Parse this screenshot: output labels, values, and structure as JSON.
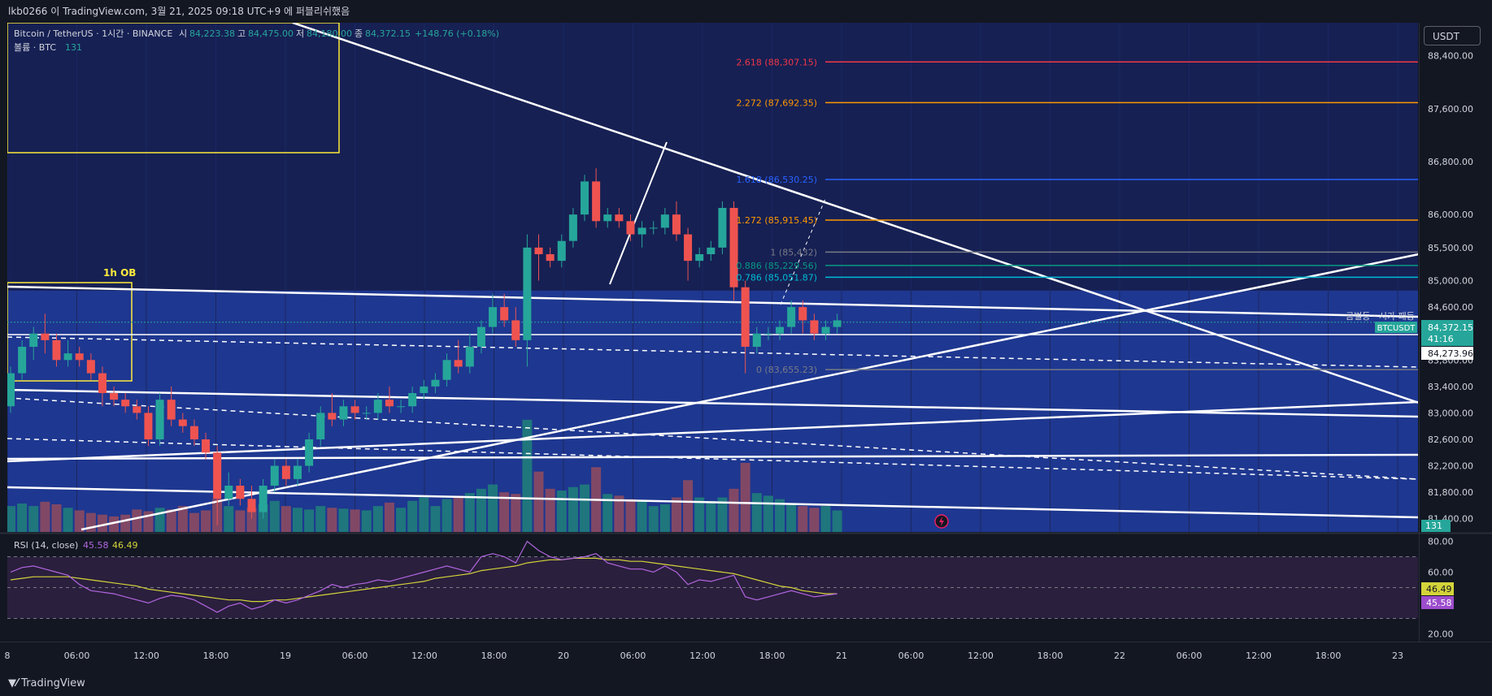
{
  "header": {
    "publish_note": "lkb0266 이 TradingView.com, 3월 21, 2025 09:18 UTC+9 에 퍼블리쉬했음"
  },
  "legend": {
    "symbol": "Bitcoin / TetherUS · 1시간 · BINANCE",
    "open_label": "시",
    "open_value": "84,223.38",
    "high_label": "고",
    "high_value": "84,475.00",
    "low_label": "저",
    "low_value": "84,180.00",
    "close_label": "종",
    "close_value": "84,372.15",
    "change": "+148.76 (+0.18%)",
    "volume_label": "볼륨 · BTC",
    "volume_value": "131"
  },
  "currency_button": "USDT",
  "annotations": {
    "ob_label": "1h OB",
    "fib_labels": [
      {
        "ratio": "2.618",
        "value": "88,307.15",
        "color": "#f23645"
      },
      {
        "ratio": "2.272",
        "value": "87,692.35",
        "color": "#ff9800"
      },
      {
        "ratio": "1.618",
        "value": "86,530.25",
        "color": "#2962ff"
      },
      {
        "ratio": "1.272",
        "value": "85,915.45",
        "color": "#ff9800"
      },
      {
        "ratio": "1",
        "value": "85,432",
        "color": "#787b86"
      },
      {
        "ratio": "0.886",
        "value": "85,229.56",
        "color": "#089981"
      },
      {
        "ratio": "0.786",
        "value": "85,051.87",
        "color": "#00bcd4"
      },
      {
        "ratio": "0",
        "value": "83,655.23",
        "color": "#787b86"
      }
    ],
    "bottom_right_label": "금벌등 · 시가 패등"
  },
  "price_scale": {
    "ticks": [
      "88,400.00",
      "87,600.00",
      "86,800.00",
      "86,000.00",
      "85,500.00",
      "85,000.00",
      "84,600.00",
      "83,800.00",
      "83,400.00",
      "83,000.00",
      "82,600.00",
      "82,200.00",
      "81,800.00",
      "81,400.00"
    ],
    "current_price": "84,372.15",
    "symbol_tag": "BTCUSDT",
    "countdown": "41:16",
    "marker_price": "84,273.96",
    "volume_tag": "131"
  },
  "time_axis": {
    "labels": [
      "8",
      "06:00",
      "12:00",
      "18:00",
      "19",
      "06:00",
      "12:00",
      "18:00",
      "20",
      "06:00",
      "12:00",
      "18:00",
      "21",
      "06:00",
      "12:00",
      "18:00",
      "22",
      "06:00",
      "12:00",
      "18:00",
      "23"
    ]
  },
  "rsi": {
    "label": "RSI (14, close)",
    "value": "45.58",
    "ma_value": "46.49",
    "ticks": [
      "80.00",
      "60.00",
      "40.00",
      "20.00"
    ]
  },
  "footer": {
    "brand": "TradingView"
  },
  "colors": {
    "up": "#26a69a",
    "down": "#ef5350",
    "background_top": "#162053",
    "background_band": "#1e3790",
    "rsi_line": "#b266e0",
    "rsi_ma": "#d4d43a"
  },
  "chart_data": {
    "type": "candlestick",
    "price_ylim": [
      81200,
      88900
    ],
    "candles": [
      [
        83100,
        83700,
        83000,
        83600
      ],
      [
        83600,
        84100,
        83500,
        84000
      ],
      [
        84000,
        84300,
        83800,
        84200
      ],
      [
        84200,
        84500,
        83900,
        84100
      ],
      [
        84100,
        84200,
        83700,
        83800
      ],
      [
        83800,
        84100,
        83700,
        83900
      ],
      [
        83900,
        84000,
        83700,
        83800
      ],
      [
        83800,
        83900,
        83500,
        83600
      ],
      [
        83600,
        83700,
        83100,
        83300
      ],
      [
        83300,
        83400,
        83100,
        83200
      ],
      [
        83200,
        83300,
        83000,
        83100
      ],
      [
        83100,
        83200,
        82900,
        83000
      ],
      [
        83000,
        83100,
        82500,
        82600
      ],
      [
        82600,
        83300,
        82500,
        83200
      ],
      [
        83200,
        83400,
        82800,
        82900
      ],
      [
        82900,
        83000,
        82700,
        82800
      ],
      [
        82800,
        82900,
        82500,
        82600
      ],
      [
        82600,
        82700,
        82300,
        82400
      ],
      [
        82400,
        82500,
        81300,
        81700
      ],
      [
        81700,
        82100,
        81600,
        81900
      ],
      [
        81900,
        82000,
        81600,
        81700
      ],
      [
        81700,
        81900,
        81400,
        81500
      ],
      [
        81500,
        82000,
        81400,
        81900
      ],
      [
        81900,
        82300,
        81800,
        82200
      ],
      [
        82200,
        82300,
        81900,
        82000
      ],
      [
        82000,
        82300,
        81900,
        82200
      ],
      [
        82200,
        82700,
        82100,
        82600
      ],
      [
        82600,
        83100,
        82500,
        83000
      ],
      [
        83000,
        83300,
        82800,
        82900
      ],
      [
        82900,
        83200,
        82800,
        83100
      ],
      [
        83100,
        83200,
        82900,
        83000
      ],
      [
        83000,
        83100,
        82900,
        83000
      ],
      [
        83000,
        83300,
        82900,
        83200
      ],
      [
        83200,
        83400,
        83000,
        83100
      ],
      [
        83100,
        83200,
        83000,
        83100
      ],
      [
        83100,
        83400,
        83000,
        83300
      ],
      [
        83300,
        83500,
        83200,
        83400
      ],
      [
        83400,
        83600,
        83300,
        83500
      ],
      [
        83500,
        83900,
        83400,
        83800
      ],
      [
        83800,
        84100,
        83600,
        83700
      ],
      [
        83700,
        84200,
        83600,
        84000
      ],
      [
        84000,
        84400,
        83900,
        84300
      ],
      [
        84300,
        84800,
        84200,
        84600
      ],
      [
        84600,
        84800,
        84300,
        84400
      ],
      [
        84400,
        84600,
        84000,
        84100
      ],
      [
        84100,
        85700,
        83700,
        85500
      ],
      [
        85500,
        85700,
        85000,
        85400
      ],
      [
        85400,
        85500,
        85200,
        85300
      ],
      [
        85300,
        85700,
        85200,
        85600
      ],
      [
        85600,
        86100,
        85500,
        86000
      ],
      [
        86000,
        86600,
        85900,
        86500
      ],
      [
        86500,
        86700,
        85800,
        85900
      ],
      [
        85900,
        86100,
        85800,
        86000
      ],
      [
        86000,
        86100,
        85800,
        85900
      ],
      [
        85900,
        86000,
        85600,
        85700
      ],
      [
        85700,
        85900,
        85500,
        85800
      ],
      [
        85800,
        85900,
        85700,
        85800
      ],
      [
        85800,
        86100,
        85700,
        86000
      ],
      [
        86000,
        86200,
        85600,
        85700
      ],
      [
        85700,
        85800,
        85000,
        85300
      ],
      [
        85300,
        85500,
        85200,
        85400
      ],
      [
        85400,
        85600,
        85300,
        85500
      ],
      [
        85500,
        86200,
        85400,
        86100
      ],
      [
        86100,
        86200,
        84700,
        84900
      ],
      [
        84900,
        85000,
        83600,
        84000
      ],
      [
        84000,
        84300,
        83900,
        84200
      ],
      [
        84200,
        84300,
        84100,
        84200
      ],
      [
        84200,
        84400,
        84100,
        84300
      ],
      [
        84300,
        84700,
        84200,
        84600
      ],
      [
        84600,
        84700,
        84200,
        84400
      ],
      [
        84400,
        84500,
        84100,
        84200
      ],
      [
        84200,
        84400,
        84100,
        84300
      ],
      [
        84300,
        84500,
        84200,
        84400
      ]
    ],
    "volumes": [
      30,
      33,
      30,
      35,
      32,
      28,
      25,
      22,
      20,
      18,
      20,
      26,
      24,
      28,
      26,
      30,
      22,
      25,
      38,
      30,
      25,
      28,
      32,
      36,
      30,
      28,
      26,
      30,
      28,
      27,
      26,
      25,
      30,
      34,
      28,
      36,
      40,
      30,
      38,
      42,
      45,
      50,
      55,
      46,
      44,
      130,
      70,
      50,
      48,
      52,
      55,
      75,
      44,
      42,
      38,
      36,
      30,
      32,
      40,
      60,
      40,
      36,
      40,
      50,
      80,
      45,
      42,
      38,
      32,
      30,
      28,
      30,
      25
    ],
    "volume_ymax": 160,
    "rsi_ylim": [
      15,
      85
    ],
    "rsi_values": [
      60,
      63,
      64,
      62,
      60,
      58,
      52,
      48,
      47,
      46,
      44,
      42,
      40,
      43,
      45,
      44,
      42,
      38,
      34,
      38,
      40,
      36,
      38,
      42,
      40,
      42,
      45,
      48,
      52,
      50,
      52,
      53,
      55,
      54,
      56,
      58,
      60,
      62,
      64,
      62,
      60,
      70,
      72,
      70,
      66,
      80,
      74,
      70,
      68,
      69,
      70,
      72,
      66,
      64,
      62,
      62,
      60,
      64,
      60,
      52,
      55,
      54,
      56,
      58,
      44,
      42,
      44,
      46,
      48,
      46,
      44,
      45,
      46
    ],
    "rsi_ma_values": [
      55,
      56,
      57,
      57,
      57,
      57,
      56,
      55,
      54,
      53,
      52,
      51,
      49,
      48,
      47,
      46,
      45,
      44,
      43,
      42,
      42,
      41,
      41,
      42,
      42,
      43,
      44,
      45,
      46,
      47,
      48,
      49,
      50,
      51,
      52,
      53,
      54,
      56,
      57,
      58,
      59,
      61,
      62,
      63,
      64,
      66,
      67,
      68,
      68,
      69,
      69,
      69,
      68,
      68,
      67,
      67,
      66,
      65,
      64,
      63,
      62,
      61,
      60,
      59,
      57,
      55,
      53,
      51,
      50,
      48,
      47,
      46,
      46
    ],
    "rsi_bands": [
      70,
      50,
      30
    ]
  }
}
